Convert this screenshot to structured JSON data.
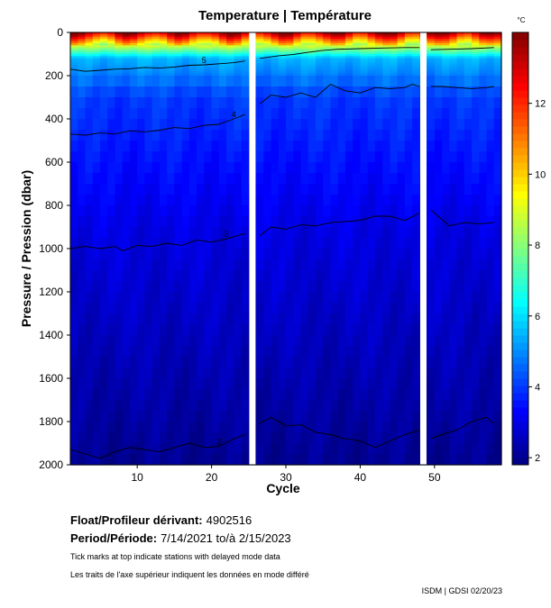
{
  "chart_data": {
    "type": "heatmap",
    "title": "Temperature | Température",
    "xlabel": "Cycle",
    "ylabel": "Pressure / Pression (dbar)",
    "unit": "°C",
    "x_range": [
      1,
      59
    ],
    "y_range": [
      0,
      2000
    ],
    "y_inverted": true,
    "x_ticks": [
      10,
      20,
      30,
      40,
      50
    ],
    "y_ticks": [
      0,
      200,
      400,
      600,
      800,
      1000,
      1200,
      1400,
      1600,
      1800,
      2000
    ],
    "colorbar": {
      "range": [
        1.8,
        14.0
      ],
      "ticks": [
        2,
        4,
        6,
        8,
        10,
        12
      ],
      "placement": "right"
    },
    "gaps_cycles": [
      25.5,
      48.5
    ],
    "contours": [
      {
        "label": "5",
        "points": [
          [
            1,
            170
          ],
          [
            3,
            180
          ],
          [
            5,
            175
          ],
          [
            7,
            170
          ],
          [
            9,
            168
          ],
          [
            11,
            162
          ],
          [
            13,
            165
          ],
          [
            15,
            160
          ],
          [
            17,
            152
          ],
          [
            19,
            150
          ],
          [
            21,
            145
          ],
          [
            23,
            140
          ],
          [
            24.5,
            132
          ],
          [
            26.5,
            120
          ],
          [
            29,
            108
          ],
          [
            31,
            102
          ],
          [
            33,
            92
          ],
          [
            35,
            83
          ],
          [
            37,
            78
          ],
          [
            40,
            75
          ],
          [
            43,
            72
          ],
          [
            46,
            70
          ],
          [
            48,
            70
          ],
          [
            49.5,
            80
          ],
          [
            52,
            78
          ],
          [
            55,
            75
          ],
          [
            58,
            70
          ]
        ]
      },
      {
        "label": "4",
        "points": [
          [
            1,
            470
          ],
          [
            3,
            475
          ],
          [
            5,
            465
          ],
          [
            7,
            470
          ],
          [
            9,
            455
          ],
          [
            11,
            460
          ],
          [
            13,
            452
          ],
          [
            15,
            440
          ],
          [
            17,
            445
          ],
          [
            19,
            430
          ],
          [
            21,
            425
          ],
          [
            23,
            400
          ],
          [
            24.5,
            380
          ],
          [
            26.5,
            330
          ],
          [
            28,
            290
          ],
          [
            30,
            300
          ],
          [
            32,
            280
          ],
          [
            34,
            300
          ],
          [
            36,
            240
          ],
          [
            38,
            270
          ],
          [
            40,
            280
          ],
          [
            42,
            255
          ],
          [
            44,
            260
          ],
          [
            46,
            255
          ],
          [
            47,
            240
          ],
          [
            48,
            250
          ],
          [
            49.5,
            250
          ],
          [
            51,
            250
          ],
          [
            53,
            255
          ],
          [
            55,
            260
          ],
          [
            57,
            255
          ],
          [
            58,
            250
          ]
        ]
      },
      {
        "label": "3",
        "points": [
          [
            1,
            1000
          ],
          [
            3,
            990
          ],
          [
            5,
            1000
          ],
          [
            7,
            990
          ],
          [
            8,
            1010
          ],
          [
            10,
            985
          ],
          [
            12,
            990
          ],
          [
            14,
            975
          ],
          [
            16,
            985
          ],
          [
            18,
            960
          ],
          [
            20,
            970
          ],
          [
            22,
            955
          ],
          [
            24,
            935
          ],
          [
            24.5,
            930
          ],
          [
            26.5,
            940
          ],
          [
            28,
            900
          ],
          [
            30,
            910
          ],
          [
            32,
            890
          ],
          [
            34,
            895
          ],
          [
            36,
            880
          ],
          [
            38,
            875
          ],
          [
            40,
            870
          ],
          [
            42,
            850
          ],
          [
            44,
            850
          ],
          [
            46,
            870
          ],
          [
            48,
            835
          ],
          [
            49.5,
            820
          ],
          [
            50.5,
            850
          ],
          [
            52,
            895
          ],
          [
            54,
            880
          ],
          [
            56,
            885
          ],
          [
            58,
            880
          ]
        ]
      },
      {
        "label": "2",
        "points": [
          [
            1,
            1930
          ],
          [
            3,
            1950
          ],
          [
            5,
            1970
          ],
          [
            7,
            1940
          ],
          [
            9,
            1920
          ],
          [
            11,
            1930
          ],
          [
            13,
            1940
          ],
          [
            15,
            1920
          ],
          [
            17,
            1900
          ],
          [
            19,
            1920
          ],
          [
            21,
            1915
          ],
          [
            23,
            1880
          ],
          [
            24.5,
            1860
          ],
          [
            26.5,
            1810
          ],
          [
            28,
            1780
          ],
          [
            30,
            1820
          ],
          [
            32,
            1815
          ],
          [
            34,
            1850
          ],
          [
            36,
            1860
          ],
          [
            38,
            1880
          ],
          [
            40,
            1890
          ],
          [
            42,
            1920
          ],
          [
            44,
            1890
          ],
          [
            46,
            1860
          ],
          [
            48,
            1840
          ],
          [
            49.5,
            1880
          ],
          [
            51,
            1860
          ],
          [
            53,
            1840
          ],
          [
            55,
            1800
          ],
          [
            57,
            1780
          ],
          [
            58,
            1810
          ]
        ]
      }
    ]
  },
  "info": {
    "float_label": "Float/Profileur dérivant:",
    "float_value": "4902516",
    "period_label": "Period/Période:",
    "period_value": "7/14/2021  to/à  2/15/2023",
    "note_en": "Tick marks at top indicate stations with delayed mode data",
    "note_fr": "Les traits de l'axe supérieur indiquent les données en mode différé",
    "credit": "ISDM | GDSI  02/20/23"
  }
}
